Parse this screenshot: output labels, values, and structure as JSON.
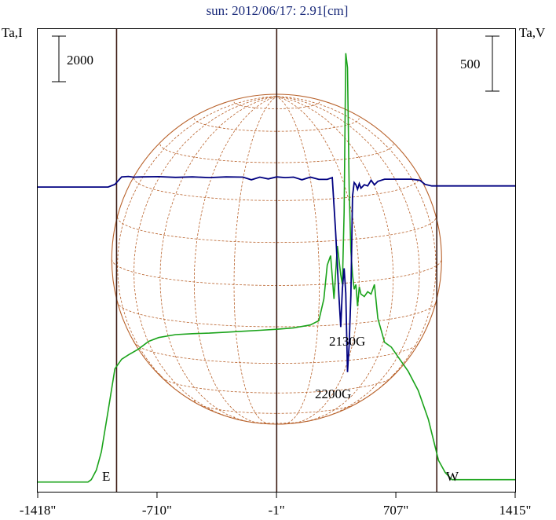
{
  "chart_data": {
    "type": "line",
    "title": "sun: 2012/06/17: 2.91[cm]",
    "left_axis_label": "Ta,I",
    "right_axis_label": "Ta,V",
    "left_scale_bar": "2000",
    "right_scale_bar": "500",
    "x_ticks": [
      {
        "value": -1418,
        "label": "-1418\""
      },
      {
        "value": -710,
        "label": "-710\""
      },
      {
        "value": -1,
        "label": "-1\""
      },
      {
        "value": 707,
        "label": "707\""
      },
      {
        "value": 1415,
        "label": "1415\""
      }
    ],
    "xlim": [
      -1418,
      1415
    ],
    "limb_labels": {
      "east": "E",
      "west": "W"
    },
    "limb_positions": [
      -950,
      950
    ],
    "annotations": [
      {
        "text": "2130G",
        "x": 470,
        "y_level": "mid"
      },
      {
        "text": "2200G",
        "x": 350,
        "y_level": "low"
      }
    ],
    "colors": {
      "stokes_i": "#1aa31a",
      "stokes_v": "#000080",
      "grid": "#b8612a",
      "vertical_lines": "#3b1a12",
      "title": "#1a2a7a"
    },
    "series": [
      {
        "key": "I",
        "x": [
          -1418,
          -1120,
          -1100,
          -1070,
          -1040,
          -1000,
          -960,
          -920,
          -880,
          -820,
          -760,
          -700,
          -600,
          -500,
          -400,
          -300,
          -200,
          -100,
          0,
          100,
          200,
          250,
          280,
          300,
          320,
          340,
          360,
          380,
          390,
          400,
          410,
          420,
          430,
          440,
          450,
          460,
          470,
          480,
          490,
          500,
          520,
          540,
          560,
          580,
          600,
          640,
          680,
          720,
          780,
          840,
          900,
          960,
          1000,
          1040,
          1415
        ],
        "y": [
          0,
          0,
          50,
          250,
          630,
          1480,
          2350,
          2550,
          2640,
          2760,
          2920,
          3000,
          3060,
          3080,
          3090,
          3110,
          3130,
          3150,
          3170,
          3200,
          3260,
          3350,
          3800,
          4500,
          4700,
          3800,
          4900,
          4300,
          4100,
          5600,
          8900,
          8600,
          6100,
          4800,
          4300,
          4000,
          4100,
          3650,
          4050,
          3900,
          3850,
          3950,
          3900,
          4100,
          3400,
          2900,
          2800,
          2600,
          2300,
          1900,
          1300,
          450,
          200,
          50,
          50
        ]
      },
      {
        "key": "V",
        "x": [
          -1418,
          -1000,
          -960,
          -920,
          -880,
          -850,
          -800,
          -700,
          -600,
          -500,
          -400,
          -300,
          -200,
          -150,
          -100,
          -50,
          0,
          50,
          100,
          150,
          200,
          250,
          300,
          330,
          350,
          370,
          380,
          390,
          400,
          410,
          420,
          430,
          440,
          450,
          460,
          470,
          480,
          490,
          500,
          520,
          540,
          560,
          580,
          600,
          640,
          700,
          800,
          850,
          880,
          920,
          960,
          1000,
          1415
        ],
        "y": [
          0,
          0,
          12,
          45,
          47,
          44,
          45,
          46,
          43,
          45,
          42,
          45,
          44,
          32,
          44,
          36,
          45,
          42,
          44,
          32,
          44,
          34,
          34,
          42,
          -200,
          -490,
          -620,
          -450,
          -360,
          -470,
          -820,
          -700,
          -480,
          -40,
          20,
          10,
          -10,
          15,
          -5,
          10,
          5,
          30,
          10,
          25,
          35,
          35,
          35,
          30,
          12,
          5,
          5,
          5,
          5
        ]
      }
    ],
    "y_I_range": [
      -200,
      9400
    ],
    "y_V_range": [
      -1350,
      700
    ]
  }
}
